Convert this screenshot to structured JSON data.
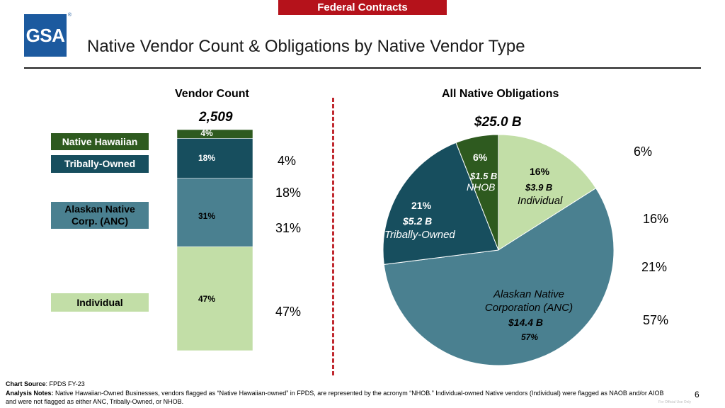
{
  "banner": "Federal Contracts",
  "logo_text": "GSA",
  "logo_mark": "®",
  "title": "Native Vendor Count & Obligations by Native Vendor Type",
  "left_panel": {
    "heading": "Vendor Count",
    "total": "2,509",
    "legend": [
      {
        "label": "Native Hawaiian",
        "color": "#2e5a1f",
        "text_color": "#ffffff"
      },
      {
        "label": "Tribally-Owned",
        "color": "#174e5e",
        "text_color": "#ffffff"
      },
      {
        "label": "Alaskan Native Corp. (ANC)",
        "color": "#4a8090",
        "text_color": "#000000"
      },
      {
        "label": "Individual",
        "color": "#c2dea7",
        "text_color": "#000000"
      }
    ],
    "side_labels": [
      "4%",
      "18%",
      "31%",
      "47%"
    ]
  },
  "right_panel": {
    "heading": "All Native Obligations",
    "total": "$25.0 B",
    "side_labels": [
      "6%",
      "16%",
      "21%",
      "57%"
    ]
  },
  "chart_data": [
    {
      "type": "bar",
      "stacked": true,
      "title": "Vendor Count",
      "total": "2,509",
      "series": [
        {
          "name": "Native Hawaiian",
          "value": 4,
          "label": "4%",
          "color": "#2e5a1f",
          "label_color": "#ffffff"
        },
        {
          "name": "Tribally-Owned",
          "value": 18,
          "label": "18%",
          "color": "#174e5e",
          "label_color": "#ffffff"
        },
        {
          "name": "Alaskan Native Corp. (ANC)",
          "value": 31,
          "label": "31%",
          "color": "#4a8090",
          "label_color": "#000000"
        },
        {
          "name": "Individual",
          "value": 47,
          "label": "47%",
          "color": "#c2dea7",
          "label_color": "#000000"
        }
      ],
      "ylim": [
        0,
        100
      ]
    },
    {
      "type": "pie",
      "title": "All Native Obligations",
      "total": "$25.0 B",
      "slices": [
        {
          "name": "Individual",
          "pct": 16,
          "pct_label": "16%",
          "amount": "$3.9 B",
          "color": "#c2dea7",
          "text_color": "#000000"
        },
        {
          "name": "Alaskan Native Corporation (ANC)",
          "pct": 57,
          "pct_label": "57%",
          "amount": "$14.4 B",
          "color": "#4a8090",
          "text_color": "#000000"
        },
        {
          "name": "Tribally-Owned",
          "pct": 21,
          "pct_label": "21%",
          "amount": "$5.2 B",
          "color": "#174e5e",
          "text_color": "#ffffff"
        },
        {
          "name": "NHOB",
          "pct": 6,
          "pct_label": "6%",
          "amount": "$1.5 B",
          "color": "#2e5a1f",
          "text_color": "#ffffff"
        }
      ]
    }
  ],
  "footer": {
    "source_label": "Chart Source",
    "source_text": ": FPDS FY-23",
    "notes_label": "Analysis Notes:",
    "notes_text": " Native Hawaiian-Owned Businesses, vendors flagged as “Native Hawaiian-owned” in FPDS, are represented by the acronym “NHOB.” Individual-owned Native vendors (Individual) were flagged as NAOB and/or AIOB and were not flagged as either ANC, Tribally-Owned, or NHOB."
  },
  "page_number": "6",
  "watermark": "For Official Use Only"
}
